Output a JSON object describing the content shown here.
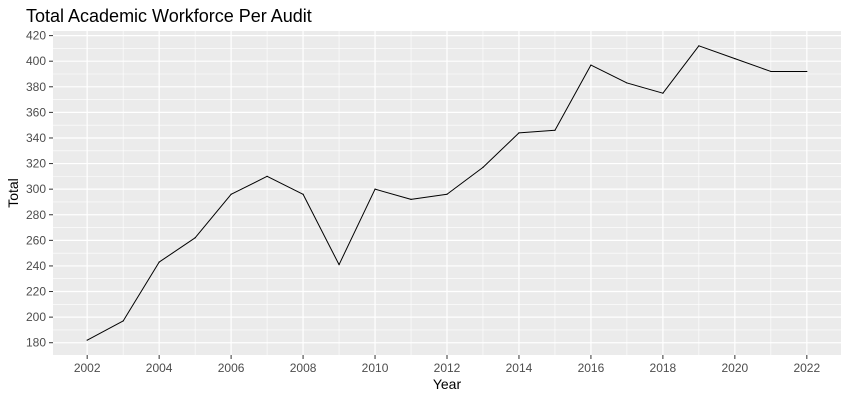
{
  "chart_data": {
    "type": "line",
    "title": "Total Academic Workforce Per Audit",
    "xlabel": "Year",
    "ylabel": "Total",
    "x": [
      2002,
      2003,
      2004,
      2005,
      2006,
      2007,
      2008,
      2009,
      2010,
      2011,
      2012,
      2013,
      2014,
      2015,
      2016,
      2017,
      2018,
      2019,
      2020,
      2021,
      2022
    ],
    "series": [
      {
        "values": [
          182,
          197,
          243,
          262,
          296,
          310,
          296,
          241,
          300,
          292,
          296,
          317,
          344,
          346,
          397,
          383,
          375,
          412,
          402,
          392,
          392
        ]
      }
    ],
    "x_ticks": [
      2002,
      2004,
      2006,
      2008,
      2010,
      2012,
      2014,
      2016,
      2018,
      2020,
      2022
    ],
    "y_ticks": [
      180,
      200,
      220,
      240,
      260,
      280,
      300,
      320,
      340,
      360,
      380,
      400,
      420
    ],
    "xlim": [
      2001.05,
      2022.95
    ],
    "ylim": [
      170.4,
      423.6
    ],
    "grid": true,
    "legend": "none",
    "colors": {
      "panel": "#ebebeb",
      "grid": "#ffffff",
      "line": "#000000",
      "tick_text": "#4d4d4d"
    }
  }
}
